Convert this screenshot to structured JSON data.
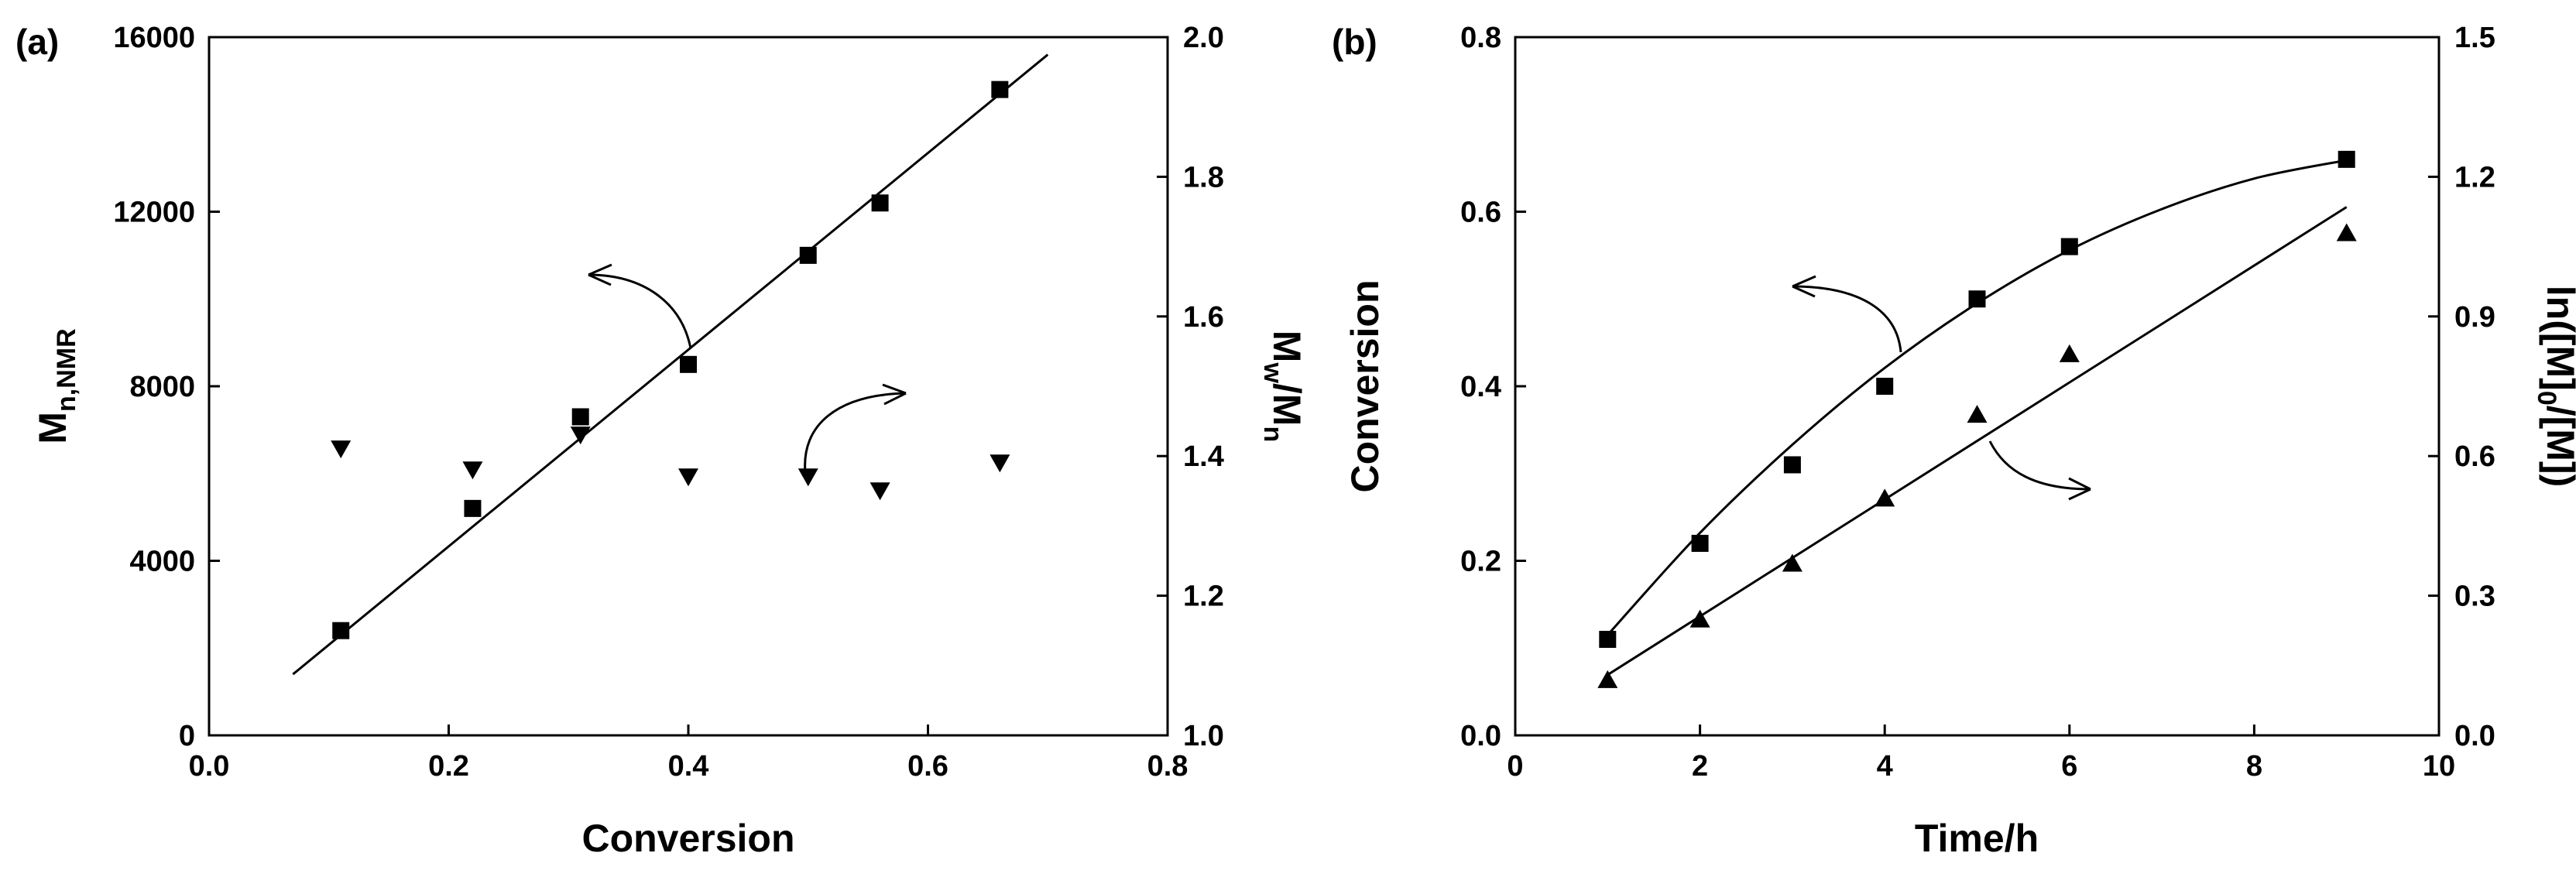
{
  "chart_data": [
    {
      "panel_label": "(a)",
      "type": "scatter",
      "xlabel": "Conversion",
      "ylabel": {
        "main": "M",
        "sub": "n,NMR"
      },
      "y2label": {
        "m1": "M",
        "s1": "w",
        "slash": "/M",
        "s2": "n"
      },
      "xlim": [
        0.0,
        0.8
      ],
      "ylim": [
        0,
        16000
      ],
      "y2lim": [
        1.0,
        2.0
      ],
      "xticks": [
        "0.0",
        "0.2",
        "0.4",
        "0.6",
        "0.8"
      ],
      "yticks": [
        "0",
        "4000",
        "8000",
        "12000",
        "16000"
      ],
      "y2ticks": [
        "1.0",
        "1.2",
        "1.4",
        "1.6",
        "1.8",
        "2.0"
      ],
      "series": [
        {
          "name": "Mn,NMR",
          "axis": "left",
          "marker": "square",
          "x": [
            0.11,
            0.22,
            0.31,
            0.4,
            0.5,
            0.56,
            0.66
          ],
          "y": [
            2400,
            5200,
            7300,
            8500,
            11000,
            12200,
            14800
          ]
        },
        {
          "name": "Mw/Mn",
          "axis": "right",
          "marker": "triangle-down",
          "x": [
            0.11,
            0.22,
            0.31,
            0.4,
            0.5,
            0.56,
            0.66
          ],
          "y": [
            1.41,
            1.38,
            1.43,
            1.37,
            1.37,
            1.35,
            1.39
          ]
        }
      ],
      "fit_lines": [
        {
          "name": "linear fit Mn",
          "axis": "left",
          "x": [
            0.07,
            0.7
          ],
          "y": [
            1400,
            15600
          ]
        }
      ]
    },
    {
      "panel_label": "(b)",
      "type": "scatter",
      "xlabel": "Time/h",
      "ylabel": {
        "main": "Conversion"
      },
      "y2label": {
        "a": "ln([M]",
        "s": "0",
        "b": "/[M])"
      },
      "xlim": [
        0,
        10
      ],
      "ylim": [
        0.0,
        0.8
      ],
      "y2lim": [
        0.0,
        1.5
      ],
      "xticks": [
        "0",
        "2",
        "4",
        "6",
        "8",
        "10"
      ],
      "yticks": [
        "0.0",
        "0.2",
        "0.4",
        "0.6",
        "0.8"
      ],
      "y2ticks": [
        "0.0",
        "0.3",
        "0.6",
        "0.9",
        "1.2",
        "1.5"
      ],
      "series": [
        {
          "name": "Conversion",
          "axis": "left",
          "marker": "square",
          "x": [
            1,
            2,
            3,
            4,
            5,
            6,
            9
          ],
          "y": [
            0.11,
            0.22,
            0.31,
            0.4,
            0.5,
            0.56,
            0.66
          ]
        },
        {
          "name": "ln([M]0/[M])",
          "axis": "right",
          "marker": "triangle-up",
          "x": [
            1,
            2,
            3,
            4,
            5,
            6,
            9
          ],
          "y": [
            0.12,
            0.25,
            0.37,
            0.51,
            0.69,
            0.82,
            1.08
          ]
        }
      ],
      "fit_lines": [
        {
          "name": "curve fit conversion",
          "axis": "left",
          "x": [
            1,
            2,
            3,
            4,
            5,
            6,
            7,
            8,
            9
          ],
          "y": [
            0.115,
            0.232,
            0.333,
            0.421,
            0.495,
            0.556,
            0.603,
            0.638,
            0.659
          ],
          "smooth": true
        },
        {
          "name": "linear fit ln",
          "axis": "right",
          "x": [
            1,
            9
          ],
          "y": [
            0.13,
            1.135
          ]
        }
      ]
    }
  ]
}
